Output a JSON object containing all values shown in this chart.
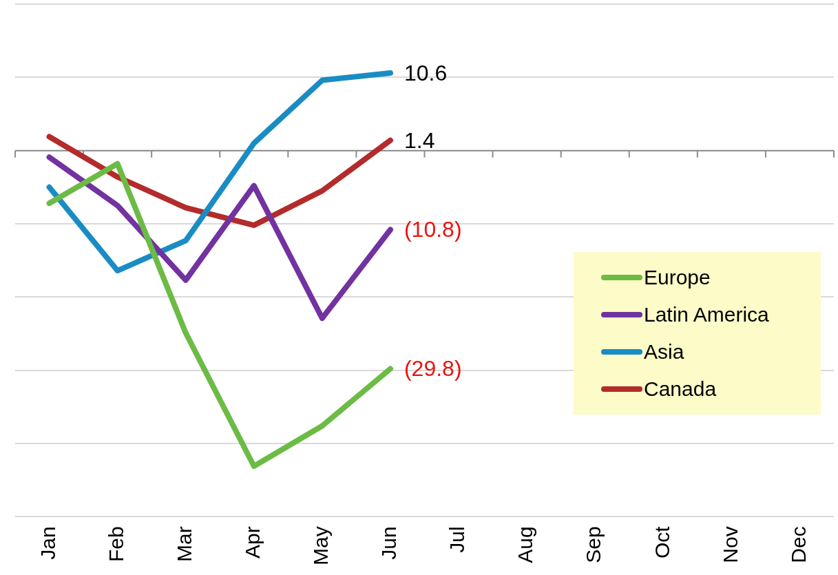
{
  "chart_data": {
    "type": "line",
    "categories": [
      "Jan",
      "Feb",
      "Mar",
      "Apr",
      "May",
      "Jun",
      "Jul",
      "Aug",
      "Sep",
      "Oct",
      "Nov",
      "Dec"
    ],
    "ylim": [
      -50,
      20
    ],
    "yticks": [
      {
        "value": -50,
        "label": null
      },
      {
        "value": -40,
        "label": null
      },
      {
        "value": -30,
        "label": null
      },
      {
        "value": -20,
        "label": null
      },
      {
        "value": -10,
        "label": null
      },
      {
        "value": 0,
        "label": null
      },
      {
        "value": 10,
        "label": null
      },
      {
        "value": 20,
        "label": null
      }
    ],
    "grid": "y",
    "legend": "right",
    "marker": "none",
    "line_style": "solid",
    "tick_labels": "x",
    "series": [
      {
        "name": "Europe",
        "color": "#6cbb45",
        "values": [
          -7.2,
          -1.8,
          -24.9,
          -43.1,
          -37.6,
          -29.8,
          null,
          null,
          null,
          null,
          null,
          null
        ],
        "value_labels": [
          null,
          null,
          null,
          null,
          null,
          "(29.8)",
          null,
          null,
          null,
          null,
          null,
          null
        ]
      },
      {
        "name": "Latin America",
        "color": "#7232a0",
        "values": [
          -0.9,
          -7.5,
          -17.7,
          -4.8,
          -22.9,
          -10.8,
          null,
          null,
          null,
          null,
          null,
          null
        ],
        "value_labels": [
          null,
          null,
          null,
          null,
          null,
          "(10.8)",
          null,
          null,
          null,
          null,
          null,
          null
        ]
      },
      {
        "name": "Asia",
        "color": "#1a8cc4",
        "values": [
          -5.0,
          -16.4,
          -12.3,
          1.0,
          9.6,
          10.6,
          null,
          null,
          null,
          null,
          null,
          null
        ],
        "value_labels": [
          null,
          null,
          null,
          null,
          null,
          "10.6",
          null,
          null,
          null,
          null,
          null,
          null
        ]
      },
      {
        "name": "Canada",
        "color": "#b32b2b",
        "values": [
          1.9,
          -3.6,
          -7.8,
          -10.2,
          -5.5,
          1.4,
          null,
          null,
          null,
          null,
          null,
          null
        ],
        "value_labels": [
          null,
          null,
          null,
          null,
          null,
          "1.4",
          null,
          null,
          null,
          null,
          null,
          null
        ]
      }
    ]
  }
}
